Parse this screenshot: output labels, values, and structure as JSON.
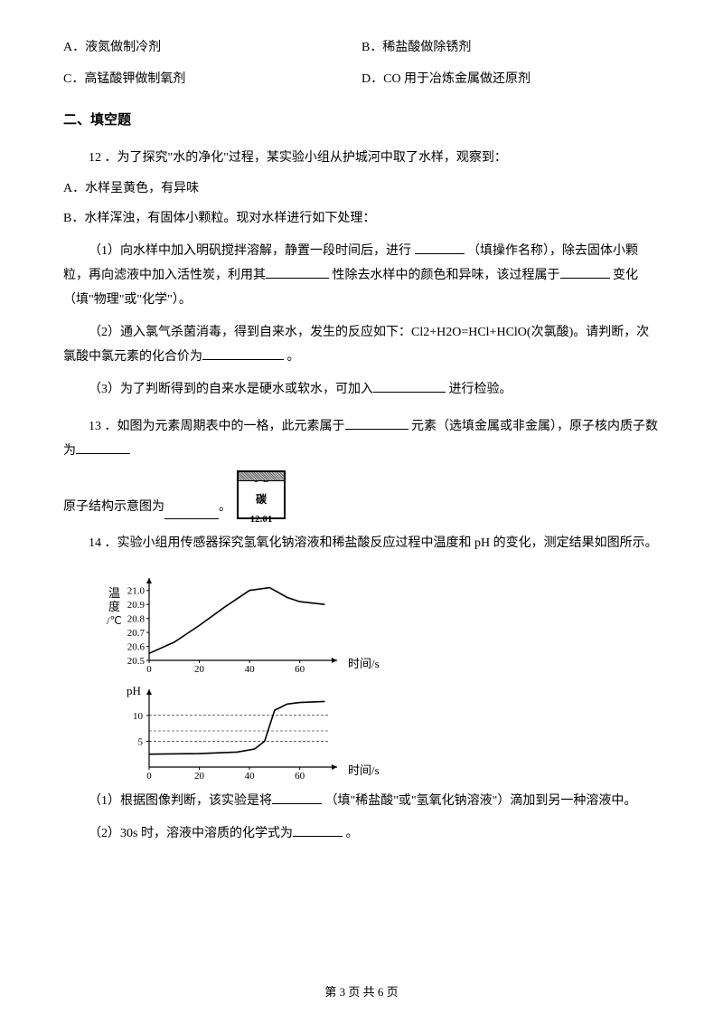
{
  "options": {
    "A": "A．液氮做制冷剂",
    "B": "B．稀盐酸做除锈剂",
    "C": "C．高锰酸钾做制氧剂",
    "D": "D．CO 用于冶炼金属做还原剂"
  },
  "section2": "二、填空题",
  "q12": {
    "stem": "12 ．为了探究\"水的净化\"过程，某实验小组从护城河中取了水样，观察到：",
    "obsA": "A．水样呈黄色，有异味",
    "obsB": "B．水样浑浊，有固体小颗粒。现对水样进行如下处理：",
    "p1a": "（1）向水样中加入明矾搅拌溶解，静置一段时间后，进行 ",
    "p1b": "（填操作名称），除去固体小颗粒，再向滤液中加入活性炭，利用其",
    "p1c": "性除去水样中的颜色和异味，该过程属于",
    "p1d": "变化（填\"物理\"或\"化学\"）。",
    "p2a": "（2）通入氯气杀菌消毒，得到自来水，发生的反应如下：Cl2+H2O=HCl+HClO(次氯酸)。请判断，次氯酸中氯元素的化合价为",
    "p2b": "。",
    "p3a": "（3）为了判断得到的自来水是硬水或软水，可加入",
    "p3b": "进行检验。"
  },
  "q13": {
    "a": "13 ．如图为元素周期表中的一格，此元素属于",
    "b": "元素（选填金属或非金属），原子核内质子数为",
    "c": "原子结构示意图为",
    "d": "。",
    "element": {
      "num": "6",
      "sym": "C",
      "name": "碳",
      "mass": "12.01"
    }
  },
  "q14": {
    "stem": "14 ．实验小组用传感器探究氢氧化钠溶液和稀盐酸反应过程中温度和 pH 的变化，测定结果如图所示。",
    "p1a": "（1）根据图像判断，该实验是将",
    "p1b": "（填\"稀盐酸\"或\"氢氧化钠溶液\"）滴加到另一种溶液中。",
    "p2a": "（2）30s 时，溶液中溶质的化学式为",
    "p2b": "。"
  },
  "chart1": {
    "ylabel1": "温",
    "ylabel2": "度",
    "yunit": "/℃",
    "xlabel": "时间/s",
    "yticks": [
      "21.0",
      "20.9",
      "20.8",
      "20.7",
      "20.6",
      "20.5"
    ],
    "xticks": [
      "0",
      "20",
      "40",
      "60"
    ],
    "points": [
      [
        0,
        20.55
      ],
      [
        10,
        20.63
      ],
      [
        20,
        20.75
      ],
      [
        30,
        20.88
      ],
      [
        40,
        21.0
      ],
      [
        48,
        21.02
      ],
      [
        55,
        20.95
      ],
      [
        60,
        20.92
      ],
      [
        70,
        20.9
      ]
    ],
    "curve_color": "#000000",
    "bg": "#ffffff",
    "xlim": [
      0,
      72
    ],
    "ylim": [
      20.5,
      21.05
    ]
  },
  "chart2": {
    "ylabel": "pH",
    "xlabel": "时间/s",
    "yticks": [
      "10",
      "5"
    ],
    "xticks": [
      "0",
      "20",
      "40",
      "60"
    ],
    "points": [
      [
        0,
        2.5
      ],
      [
        20,
        2.6
      ],
      [
        35,
        2.9
      ],
      [
        42,
        3.5
      ],
      [
        46,
        5
      ],
      [
        48,
        8
      ],
      [
        50,
        11
      ],
      [
        55,
        12.2
      ],
      [
        60,
        12.5
      ],
      [
        70,
        12.7
      ]
    ],
    "curve_color": "#000000",
    "bg": "#ffffff",
    "xlim": [
      0,
      72
    ],
    "ylim": [
      0,
      14
    ]
  },
  "footer": "第 3 页 共 6 页"
}
